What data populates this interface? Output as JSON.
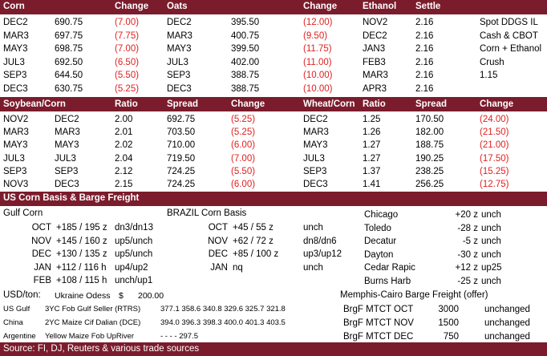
{
  "colors": {
    "band": "#7b1c2c",
    "negative": "#e02020"
  },
  "grains": {
    "headers": [
      "Corn",
      "Change",
      "Oats",
      "Change",
      "Ethanol",
      "Settle"
    ],
    "rows": [
      {
        "corn_m": "DEC2",
        "corn_p": "690.75",
        "corn_c": "(7.00)",
        "oats_m": "DEC2",
        "oats_p": "395.50",
        "oats_c": "(12.00)",
        "eth_m": "NOV2",
        "eth_s": "2.16",
        "note": "Spot DDGS IL"
      },
      {
        "corn_m": "MAR3",
        "corn_p": "697.75",
        "corn_c": "(7.75)",
        "oats_m": "MAR3",
        "oats_p": "400.75",
        "oats_c": "(9.50)",
        "eth_m": "DEC2",
        "eth_s": "2.16",
        "note": "Cash & CBOT"
      },
      {
        "corn_m": "MAY3",
        "corn_p": "698.75",
        "corn_c": "(7.00)",
        "oats_m": "MAY3",
        "oats_p": "399.50",
        "oats_c": "(11.75)",
        "eth_m": "JAN3",
        "eth_s": "2.16",
        "note": "Corn + Ethanol"
      },
      {
        "corn_m": "JUL3",
        "corn_p": "692.50",
        "corn_c": "(6.50)",
        "oats_m": "JUL3",
        "oats_p": "402.00",
        "oats_c": "(11.00)",
        "eth_m": "FEB3",
        "eth_s": "2.16",
        "note": "Crush"
      },
      {
        "corn_m": "SEP3",
        "corn_p": "644.50",
        "corn_c": "(5.50)",
        "oats_m": "SEP3",
        "oats_p": "388.75",
        "oats_c": "(10.00)",
        "eth_m": "MAR3",
        "eth_s": "2.16",
        "note": "1.15"
      },
      {
        "corn_m": "DEC3",
        "corn_p": "630.75",
        "corn_c": "(5.25)",
        "oats_m": "DEC3",
        "oats_p": "388.75",
        "oats_c": "(10.00)",
        "eth_m": "APR3",
        "eth_s": "2.16",
        "note": ""
      }
    ]
  },
  "ratios": {
    "headers": [
      "Soybean/Corn",
      "Ratio",
      "Spread",
      "Change",
      "Wheat/Corn",
      "Ratio",
      "Spread",
      "Change"
    ],
    "rows": [
      {
        "a": "NOV2",
        "b": "DEC2",
        "r": "2.00",
        "s": "692.75",
        "c": "(5.25)",
        "w": "DEC2",
        "wr": "1.25",
        "ws": "170.50",
        "wc": "(24.00)"
      },
      {
        "a": "MAR3",
        "b": "MAR3",
        "r": "2.01",
        "s": "703.50",
        "c": "(5.25)",
        "w": "MAR3",
        "wr": "1.26",
        "ws": "182.00",
        "wc": "(21.50)"
      },
      {
        "a": "MAY3",
        "b": "MAY3",
        "r": "2.02",
        "s": "710.00",
        "c": "(6.00)",
        "w": "MAY3",
        "wr": "1.27",
        "ws": "188.75",
        "wc": "(21.00)"
      },
      {
        "a": "JUL3",
        "b": "JUL3",
        "r": "2.04",
        "s": "719.50",
        "c": "(7.00)",
        "w": "JUL3",
        "wr": "1.27",
        "ws": "190.25",
        "wc": "(17.50)"
      },
      {
        "a": "SEP3",
        "b": "SEP3",
        "r": "2.12",
        "s": "724.25",
        "c": "(5.50)",
        "w": "SEP3",
        "wr": "1.37",
        "ws": "238.25",
        "wc": "(15.25)"
      },
      {
        "a": "NOV3",
        "b": "DEC3",
        "r": "2.15",
        "s": "724.25",
        "c": "(6.00)",
        "w": "DEC3",
        "wr": "1.41",
        "ws": "256.25",
        "wc": "(12.75)"
      }
    ]
  },
  "basis": {
    "title": "US Corn Basis & Barge Freight",
    "gulf_label": "Gulf Corn",
    "brazil_label": "BRAZIL Corn Basis",
    "gulf_rows": [
      {
        "m": "OCT",
        "v": "+185 / 195 z",
        "d": "dn3/dn13"
      },
      {
        "m": "NOV",
        "v": "+145 / 160 z",
        "d": "up5/unch"
      },
      {
        "m": "DEC",
        "v": "+130 / 135 z",
        "d": "up5/unch"
      },
      {
        "m": "JAN",
        "v": "+112  / 116 h",
        "d": "up4/up2"
      },
      {
        "m": "FEB",
        "v": "+108  / 115 h",
        "d": "unch/up1"
      }
    ],
    "brazil_rows": [
      {
        "m": "OCT",
        "v": "+45 / 55 z",
        "d": "unch"
      },
      {
        "m": "NOV",
        "v": "+62 / 72 z",
        "d": "dn8/dn6"
      },
      {
        "m": "DEC",
        "v": "+85 / 100 z",
        "d": "up3/up12"
      },
      {
        "m": "JAN",
        "v": "nq",
        "d": "unch"
      }
    ],
    "city_rows": [
      {
        "n": "Chicago",
        "v": "+20 z",
        "d": "unch"
      },
      {
        "n": "Toledo",
        "v": "-28 z",
        "d": "unch"
      },
      {
        "n": "Decatur",
        "v": "-5 z",
        "d": "unch"
      },
      {
        "n": "Dayton",
        "v": "-30 z",
        "d": "unch"
      },
      {
        "n": "Cedar Rapic",
        "v": "+12 z",
        "d": "up25"
      },
      {
        "n": "Burns Harb",
        "v": "-25 z",
        "d": "unch"
      }
    ]
  },
  "usd": {
    "label": "USD/ton:",
    "odessa_label": "Ukraine Odess",
    "odessa_cur": "$",
    "odessa_val": "200.00",
    "rows": [
      {
        "origin": "US Gulf",
        "desc": "3YC Fob Gulf Seller (RTRS)",
        "vals": "377.1  358.6  340.8  329.6  325.7  321.8"
      },
      {
        "origin": "China",
        "desc": "2YC Maize Cif Dalian (DCE)",
        "vals": "394.0  396.3  398.3  400.0  401.3  403.5"
      },
      {
        "origin": "Argentine",
        "desc": "Yellow Maize Fob UpRiver",
        "vals": "-      -      -      -  297.5"
      }
    ]
  },
  "barge": {
    "title": "Memphis-Cairo Barge Freight (offer)",
    "rows": [
      {
        "n": "BrgF MTCT OCT",
        "v": "3000",
        "d": "unchanged"
      },
      {
        "n": "BrgF MTCT NOV",
        "v": "1500",
        "d": "unchanged"
      },
      {
        "n": "BrgF MTCT DEC",
        "v": "750",
        "d": "unchanged"
      }
    ]
  },
  "footer": {
    "source": "Source: FI, DJ, Reuters & various trade sources"
  }
}
